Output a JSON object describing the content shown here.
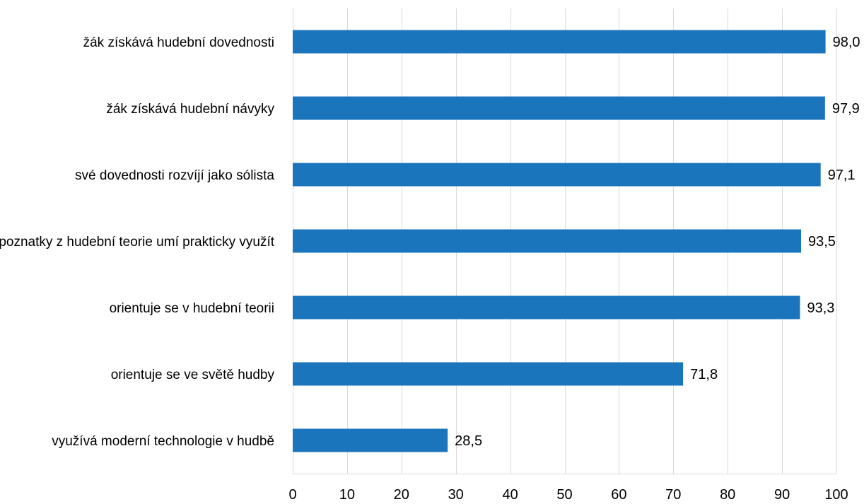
{
  "chart_data": {
    "type": "bar",
    "orientation": "horizontal",
    "categories": [
      "žák získává hudební dovednosti",
      "žák získává hudební návyky",
      "své dovednosti rozvíjí jako sólista",
      "poznatky z hudební teorie umí prakticky využít",
      "orientuje se v hudební teorii",
      "orientuje se ve světě hudby",
      "využívá moderní technologie v hudbě"
    ],
    "values": [
      98.0,
      97.9,
      97.1,
      93.5,
      93.3,
      71.8,
      28.5
    ],
    "data_labels": [
      "98,0",
      "97,9",
      "97,1",
      "93,5",
      "93,3",
      "71,8",
      "28,5"
    ],
    "xlim": [
      0,
      100
    ],
    "x_ticks": [
      0,
      10,
      20,
      30,
      40,
      50,
      60,
      70,
      80,
      90,
      100
    ],
    "title": "",
    "xlabel": "",
    "ylabel": "",
    "grid": true,
    "legend": "none",
    "bar_color": "#1b75bc",
    "grid_color": "#d9d9d9"
  }
}
